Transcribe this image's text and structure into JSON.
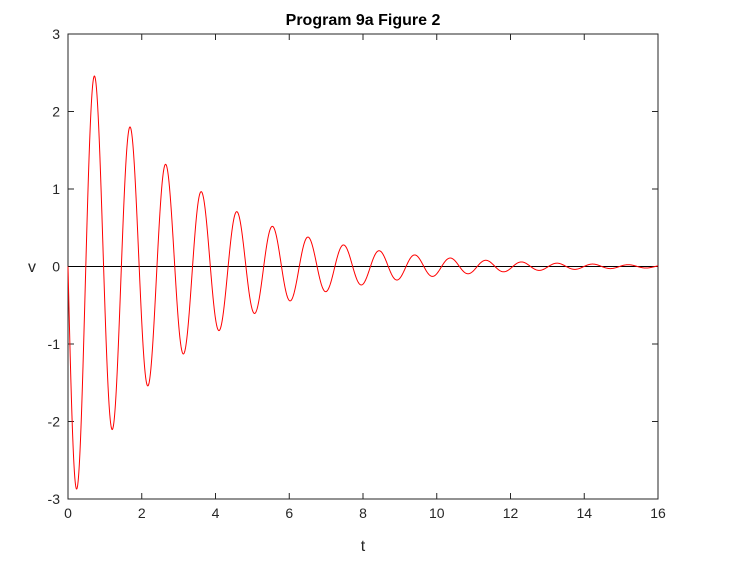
{
  "chart_data": {
    "type": "line",
    "title": "Program 9a Figure 2",
    "xlabel": "t",
    "ylabel": "v",
    "xlim": [
      0,
      16
    ],
    "ylim": [
      -3,
      3
    ],
    "xticks": [
      0,
      2,
      4,
      6,
      8,
      10,
      12,
      14,
      16
    ],
    "yticks": [
      -3,
      -2,
      -1,
      0,
      1,
      2,
      3
    ],
    "grid": false,
    "legend": "none",
    "series": [
      {
        "color": "#ff0000",
        "description_points": [
          {
            "t": 0.0,
            "v": 0.0
          },
          {
            "t": 0.25,
            "v": -2.97
          },
          {
            "t": 0.72,
            "v": 2.52
          },
          {
            "t": 1.2,
            "v": -2.13
          },
          {
            "t": 1.68,
            "v": 1.82
          },
          {
            "t": 2.17,
            "v": -1.54
          },
          {
            "t": 2.67,
            "v": 1.32
          },
          {
            "t": 3.15,
            "v": -1.11
          },
          {
            "t": 3.65,
            "v": 0.95
          },
          {
            "t": 4.13,
            "v": -0.8
          },
          {
            "t": 4.62,
            "v": 0.68
          },
          {
            "t": 5.1,
            "v": -0.58
          },
          {
            "t": 5.6,
            "v": 0.49
          },
          {
            "t": 6.08,
            "v": -0.41
          },
          {
            "t": 6.58,
            "v": 0.35
          },
          {
            "t": 7.07,
            "v": -0.3
          },
          {
            "t": 7.55,
            "v": 0.26
          },
          {
            "t": 8.05,
            "v": -0.22
          },
          {
            "t": 8.55,
            "v": 0.19
          },
          {
            "t": 9.05,
            "v": -0.16
          },
          {
            "t": 9.55,
            "v": 0.13
          },
          {
            "t": 10.5,
            "v": 0.1
          },
          {
            "t": 11.5,
            "v": 0.07
          },
          {
            "t": 12.5,
            "v": 0.05
          },
          {
            "t": 13.5,
            "v": 0.035
          },
          {
            "t": 14.5,
            "v": 0.025
          },
          {
            "t": 15.5,
            "v": 0.018
          },
          {
            "t": 16.0,
            "v": 0.0
          }
        ]
      }
    ],
    "reference_line": {
      "v": 0,
      "color": "#000000"
    }
  }
}
